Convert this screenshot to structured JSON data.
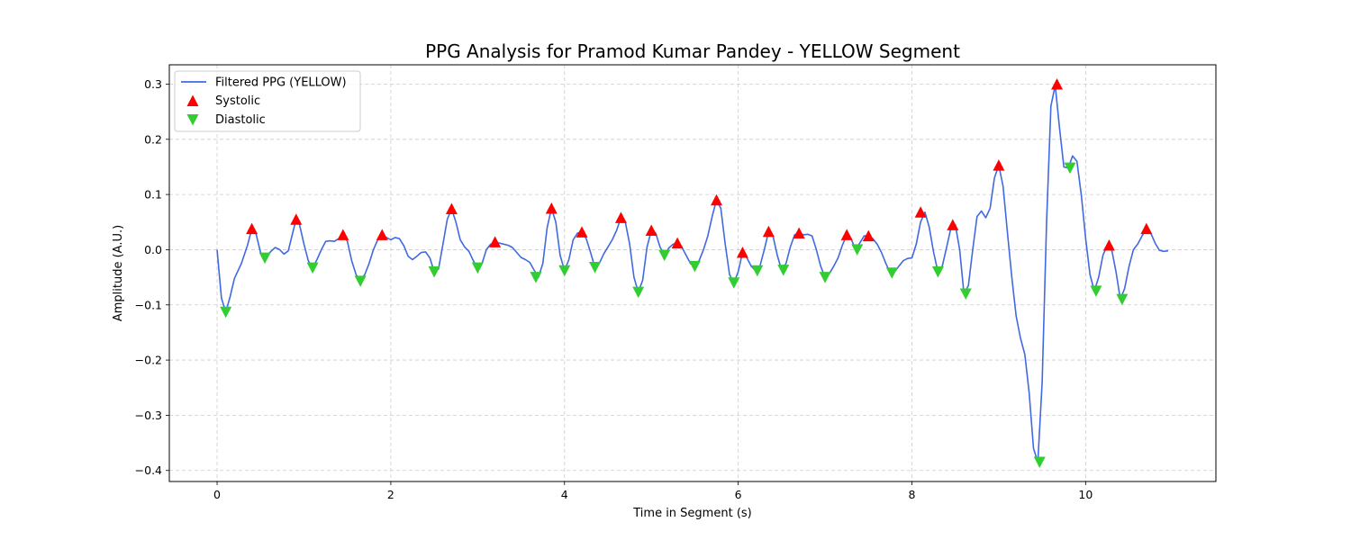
{
  "chart_data": {
    "type": "line",
    "title": "PPG Analysis for Pramod Kumar Pandey - YELLOW Segment",
    "xlabel": "Time in Segment (s)",
    "ylabel": "Amplitude (A.U.)",
    "xlim": [
      -0.55,
      11.5
    ],
    "ylim": [
      -0.42,
      0.335
    ],
    "x_ticks": [
      0,
      2,
      4,
      6,
      8,
      10
    ],
    "y_ticks": [
      -0.4,
      -0.3,
      -0.2,
      -0.1,
      0.0,
      0.1,
      0.2,
      0.3
    ],
    "x_tick_labels": [
      "0",
      "2",
      "4",
      "6",
      "8",
      "10"
    ],
    "y_tick_labels": [
      "−0.4",
      "−0.3",
      "−0.2",
      "−0.1",
      "0.0",
      "0.1",
      "0.2",
      "0.3"
    ],
    "grid": true,
    "legend_position": "top-left",
    "colors": {
      "line": "#4169e1",
      "systolic": "#ff0000",
      "diastolic": "#32cd32"
    },
    "series": [
      {
        "name": "Filtered PPG (YELLOW)",
        "kind": "line",
        "points": [
          [
            0.0,
            0.0
          ],
          [
            0.05,
            -0.088
          ],
          [
            0.1,
            -0.113
          ],
          [
            0.15,
            -0.085
          ],
          [
            0.2,
            -0.052
          ],
          [
            0.28,
            -0.025
          ],
          [
            0.35,
            0.008
          ],
          [
            0.4,
            0.038
          ],
          [
            0.45,
            0.028
          ],
          [
            0.5,
            -0.005
          ],
          [
            0.55,
            -0.015
          ],
          [
            0.62,
            -0.003
          ],
          [
            0.67,
            0.004
          ],
          [
            0.72,
            0.0
          ],
          [
            0.77,
            -0.008
          ],
          [
            0.82,
            -0.002
          ],
          [
            0.87,
            0.03
          ],
          [
            0.91,
            0.055
          ],
          [
            0.95,
            0.045
          ],
          [
            1.0,
            0.01
          ],
          [
            1.05,
            -0.02
          ],
          [
            1.1,
            -0.033
          ],
          [
            1.15,
            -0.018
          ],
          [
            1.2,
            0.0
          ],
          [
            1.25,
            0.015
          ],
          [
            1.3,
            0.016
          ],
          [
            1.35,
            0.015
          ],
          [
            1.4,
            0.02
          ],
          [
            1.45,
            0.027
          ],
          [
            1.5,
            0.015
          ],
          [
            1.55,
            -0.02
          ],
          [
            1.6,
            -0.045
          ],
          [
            1.65,
            -0.057
          ],
          [
            1.7,
            -0.045
          ],
          [
            1.75,
            -0.025
          ],
          [
            1.8,
            0.0
          ],
          [
            1.85,
            0.018
          ],
          [
            1.9,
            0.027
          ],
          [
            1.95,
            0.022
          ],
          [
            2.0,
            0.018
          ],
          [
            2.05,
            0.022
          ],
          [
            2.1,
            0.02
          ],
          [
            2.15,
            0.007
          ],
          [
            2.2,
            -0.012
          ],
          [
            2.25,
            -0.018
          ],
          [
            2.3,
            -0.012
          ],
          [
            2.35,
            -0.005
          ],
          [
            2.4,
            -0.004
          ],
          [
            2.45,
            -0.015
          ],
          [
            2.5,
            -0.04
          ],
          [
            2.55,
            -0.035
          ],
          [
            2.6,
            0.01
          ],
          [
            2.65,
            0.055
          ],
          [
            2.7,
            0.074
          ],
          [
            2.75,
            0.05
          ],
          [
            2.8,
            0.018
          ],
          [
            2.85,
            0.005
          ],
          [
            2.9,
            -0.003
          ],
          [
            2.95,
            -0.02
          ],
          [
            3.0,
            -0.033
          ],
          [
            3.05,
            -0.025
          ],
          [
            3.1,
            0.0
          ],
          [
            3.15,
            0.01
          ],
          [
            3.2,
            0.014
          ],
          [
            3.25,
            0.012
          ],
          [
            3.3,
            0.01
          ],
          [
            3.35,
            0.008
          ],
          [
            3.4,
            0.004
          ],
          [
            3.45,
            -0.005
          ],
          [
            3.5,
            -0.014
          ],
          [
            3.55,
            -0.018
          ],
          [
            3.6,
            -0.023
          ],
          [
            3.65,
            -0.037
          ],
          [
            3.7,
            -0.05
          ],
          [
            3.75,
            -0.025
          ],
          [
            3.8,
            0.04
          ],
          [
            3.85,
            0.075
          ],
          [
            3.9,
            0.05
          ],
          [
            3.95,
            -0.01
          ],
          [
            4.0,
            -0.038
          ],
          [
            4.05,
            -0.018
          ],
          [
            4.1,
            0.018
          ],
          [
            4.15,
            0.03
          ],
          [
            4.2,
            0.032
          ],
          [
            4.25,
            0.02
          ],
          [
            4.3,
            -0.005
          ],
          [
            4.35,
            -0.032
          ],
          [
            4.4,
            -0.025
          ],
          [
            4.45,
            -0.008
          ],
          [
            4.5,
            0.005
          ],
          [
            4.55,
            0.018
          ],
          [
            4.6,
            0.035
          ],
          [
            4.65,
            0.058
          ],
          [
            4.7,
            0.05
          ],
          [
            4.75,
            0.01
          ],
          [
            4.8,
            -0.05
          ],
          [
            4.85,
            -0.077
          ],
          [
            4.9,
            -0.055
          ],
          [
            4.95,
            0.005
          ],
          [
            5.0,
            0.035
          ],
          [
            5.05,
            0.03
          ],
          [
            5.1,
            0.005
          ],
          [
            5.15,
            -0.01
          ],
          [
            5.2,
            0.003
          ],
          [
            5.25,
            0.01
          ],
          [
            5.3,
            0.012
          ],
          [
            5.35,
            0.005
          ],
          [
            5.4,
            -0.01
          ],
          [
            5.45,
            -0.025
          ],
          [
            5.5,
            -0.03
          ],
          [
            5.55,
            -0.02
          ],
          [
            5.6,
            0.0
          ],
          [
            5.65,
            0.025
          ],
          [
            5.7,
            0.06
          ],
          [
            5.75,
            0.09
          ],
          [
            5.8,
            0.075
          ],
          [
            5.85,
            0.01
          ],
          [
            5.9,
            -0.045
          ],
          [
            5.95,
            -0.06
          ],
          [
            6.0,
            -0.04
          ],
          [
            6.05,
            -0.005
          ],
          [
            6.1,
            -0.015
          ],
          [
            6.15,
            -0.03
          ],
          [
            6.2,
            -0.038
          ],
          [
            6.25,
            -0.03
          ],
          [
            6.3,
            0.0
          ],
          [
            6.35,
            0.033
          ],
          [
            6.4,
            0.025
          ],
          [
            6.45,
            -0.01
          ],
          [
            6.5,
            -0.037
          ],
          [
            6.55,
            -0.025
          ],
          [
            6.6,
            0.005
          ],
          [
            6.65,
            0.027
          ],
          [
            6.7,
            0.03
          ],
          [
            6.75,
            0.027
          ],
          [
            6.8,
            0.028
          ],
          [
            6.85,
            0.025
          ],
          [
            6.9,
            0.0
          ],
          [
            6.95,
            -0.03
          ],
          [
            7.0,
            -0.05
          ],
          [
            7.05,
            -0.043
          ],
          [
            7.1,
            -0.03
          ],
          [
            7.15,
            -0.015
          ],
          [
            7.2,
            0.008
          ],
          [
            7.25,
            0.027
          ],
          [
            7.3,
            0.02
          ],
          [
            7.35,
            0.0
          ],
          [
            7.4,
            0.012
          ],
          [
            7.45,
            0.025
          ],
          [
            7.5,
            0.025
          ],
          [
            7.55,
            0.02
          ],
          [
            7.6,
            0.01
          ],
          [
            7.65,
            -0.005
          ],
          [
            7.7,
            -0.025
          ],
          [
            7.75,
            -0.042
          ],
          [
            7.8,
            -0.04
          ],
          [
            7.85,
            -0.03
          ],
          [
            7.9,
            -0.02
          ],
          [
            7.95,
            -0.016
          ],
          [
            8.0,
            -0.015
          ],
          [
            8.05,
            0.01
          ],
          [
            8.1,
            0.05
          ],
          [
            8.15,
            0.068
          ],
          [
            8.2,
            0.04
          ],
          [
            8.25,
            -0.005
          ],
          [
            8.3,
            -0.04
          ],
          [
            8.35,
            -0.03
          ],
          [
            8.4,
            0.005
          ],
          [
            8.45,
            0.04
          ],
          [
            8.5,
            0.045
          ],
          [
            8.55,
            0.0
          ],
          [
            8.6,
            -0.08
          ],
          [
            8.65,
            -0.065
          ],
          [
            8.7,
            0.0
          ],
          [
            8.75,
            0.06
          ],
          [
            8.8,
            0.07
          ],
          [
            8.85,
            0.058
          ],
          [
            8.9,
            0.075
          ],
          [
            8.95,
            0.13
          ],
          [
            9.0,
            0.153
          ],
          [
            9.05,
            0.115
          ],
          [
            9.1,
            0.03
          ],
          [
            9.15,
            -0.05
          ],
          [
            9.2,
            -0.12
          ],
          [
            9.25,
            -0.16
          ],
          [
            9.3,
            -0.19
          ],
          [
            9.35,
            -0.26
          ],
          [
            9.4,
            -0.36
          ],
          [
            9.45,
            -0.385
          ],
          [
            9.5,
            -0.24
          ],
          [
            9.55,
            0.05
          ],
          [
            9.6,
            0.26
          ],
          [
            9.65,
            0.298
          ],
          [
            9.7,
            0.22
          ],
          [
            9.75,
            0.15
          ],
          [
            9.8,
            0.148
          ],
          [
            9.85,
            0.17
          ],
          [
            9.9,
            0.16
          ],
          [
            9.95,
            0.1
          ],
          [
            10.0,
            0.02
          ],
          [
            10.05,
            -0.045
          ],
          [
            10.1,
            -0.075
          ],
          [
            10.15,
            -0.05
          ],
          [
            10.2,
            -0.01
          ],
          [
            10.25,
            0.008
          ],
          [
            10.3,
            0.0
          ],
          [
            10.35,
            -0.04
          ],
          [
            10.4,
            -0.09
          ],
          [
            10.45,
            -0.07
          ],
          [
            10.5,
            -0.03
          ],
          [
            10.55,
            0.0
          ],
          [
            10.6,
            0.01
          ],
          [
            10.65,
            0.025
          ],
          [
            10.7,
            0.038
          ],
          [
            10.75,
            0.03
          ],
          [
            10.8,
            0.012
          ],
          [
            10.85,
            -0.001
          ],
          [
            10.9,
            -0.003
          ],
          [
            10.95,
            -0.002
          ]
        ]
      },
      {
        "name": "Systolic",
        "kind": "marker-up",
        "points": [
          [
            0.4,
            0.038
          ],
          [
            0.91,
            0.055
          ],
          [
            1.45,
            0.027
          ],
          [
            1.9,
            0.027
          ],
          [
            2.7,
            0.074
          ],
          [
            3.2,
            0.014
          ],
          [
            3.85,
            0.075
          ],
          [
            4.2,
            0.032
          ],
          [
            4.65,
            0.058
          ],
          [
            5.0,
            0.035
          ],
          [
            5.3,
            0.012
          ],
          [
            5.75,
            0.09
          ],
          [
            6.05,
            -0.005
          ],
          [
            6.35,
            0.033
          ],
          [
            6.7,
            0.03
          ],
          [
            7.25,
            0.027
          ],
          [
            7.5,
            0.025
          ],
          [
            8.1,
            0.068
          ],
          [
            8.47,
            0.045
          ],
          [
            9.0,
            0.153
          ],
          [
            9.67,
            0.3
          ],
          [
            10.27,
            0.008
          ],
          [
            10.7,
            0.038
          ]
        ]
      },
      {
        "name": "Diastolic",
        "kind": "marker-down",
        "points": [
          [
            0.1,
            -0.113
          ],
          [
            0.55,
            -0.015
          ],
          [
            1.1,
            -0.033
          ],
          [
            1.65,
            -0.057
          ],
          [
            2.5,
            -0.04
          ],
          [
            3.0,
            -0.033
          ],
          [
            3.67,
            -0.05
          ],
          [
            4.0,
            -0.038
          ],
          [
            4.35,
            -0.032
          ],
          [
            4.85,
            -0.077
          ],
          [
            5.15,
            -0.01
          ],
          [
            5.5,
            -0.03
          ],
          [
            5.95,
            -0.06
          ],
          [
            6.22,
            -0.038
          ],
          [
            6.52,
            -0.037
          ],
          [
            7.0,
            -0.05
          ],
          [
            7.37,
            0.0
          ],
          [
            7.77,
            -0.042
          ],
          [
            8.3,
            -0.04
          ],
          [
            8.62,
            -0.08
          ],
          [
            9.47,
            -0.385
          ],
          [
            9.82,
            0.148
          ],
          [
            10.12,
            -0.075
          ],
          [
            10.42,
            -0.09
          ]
        ]
      }
    ]
  }
}
